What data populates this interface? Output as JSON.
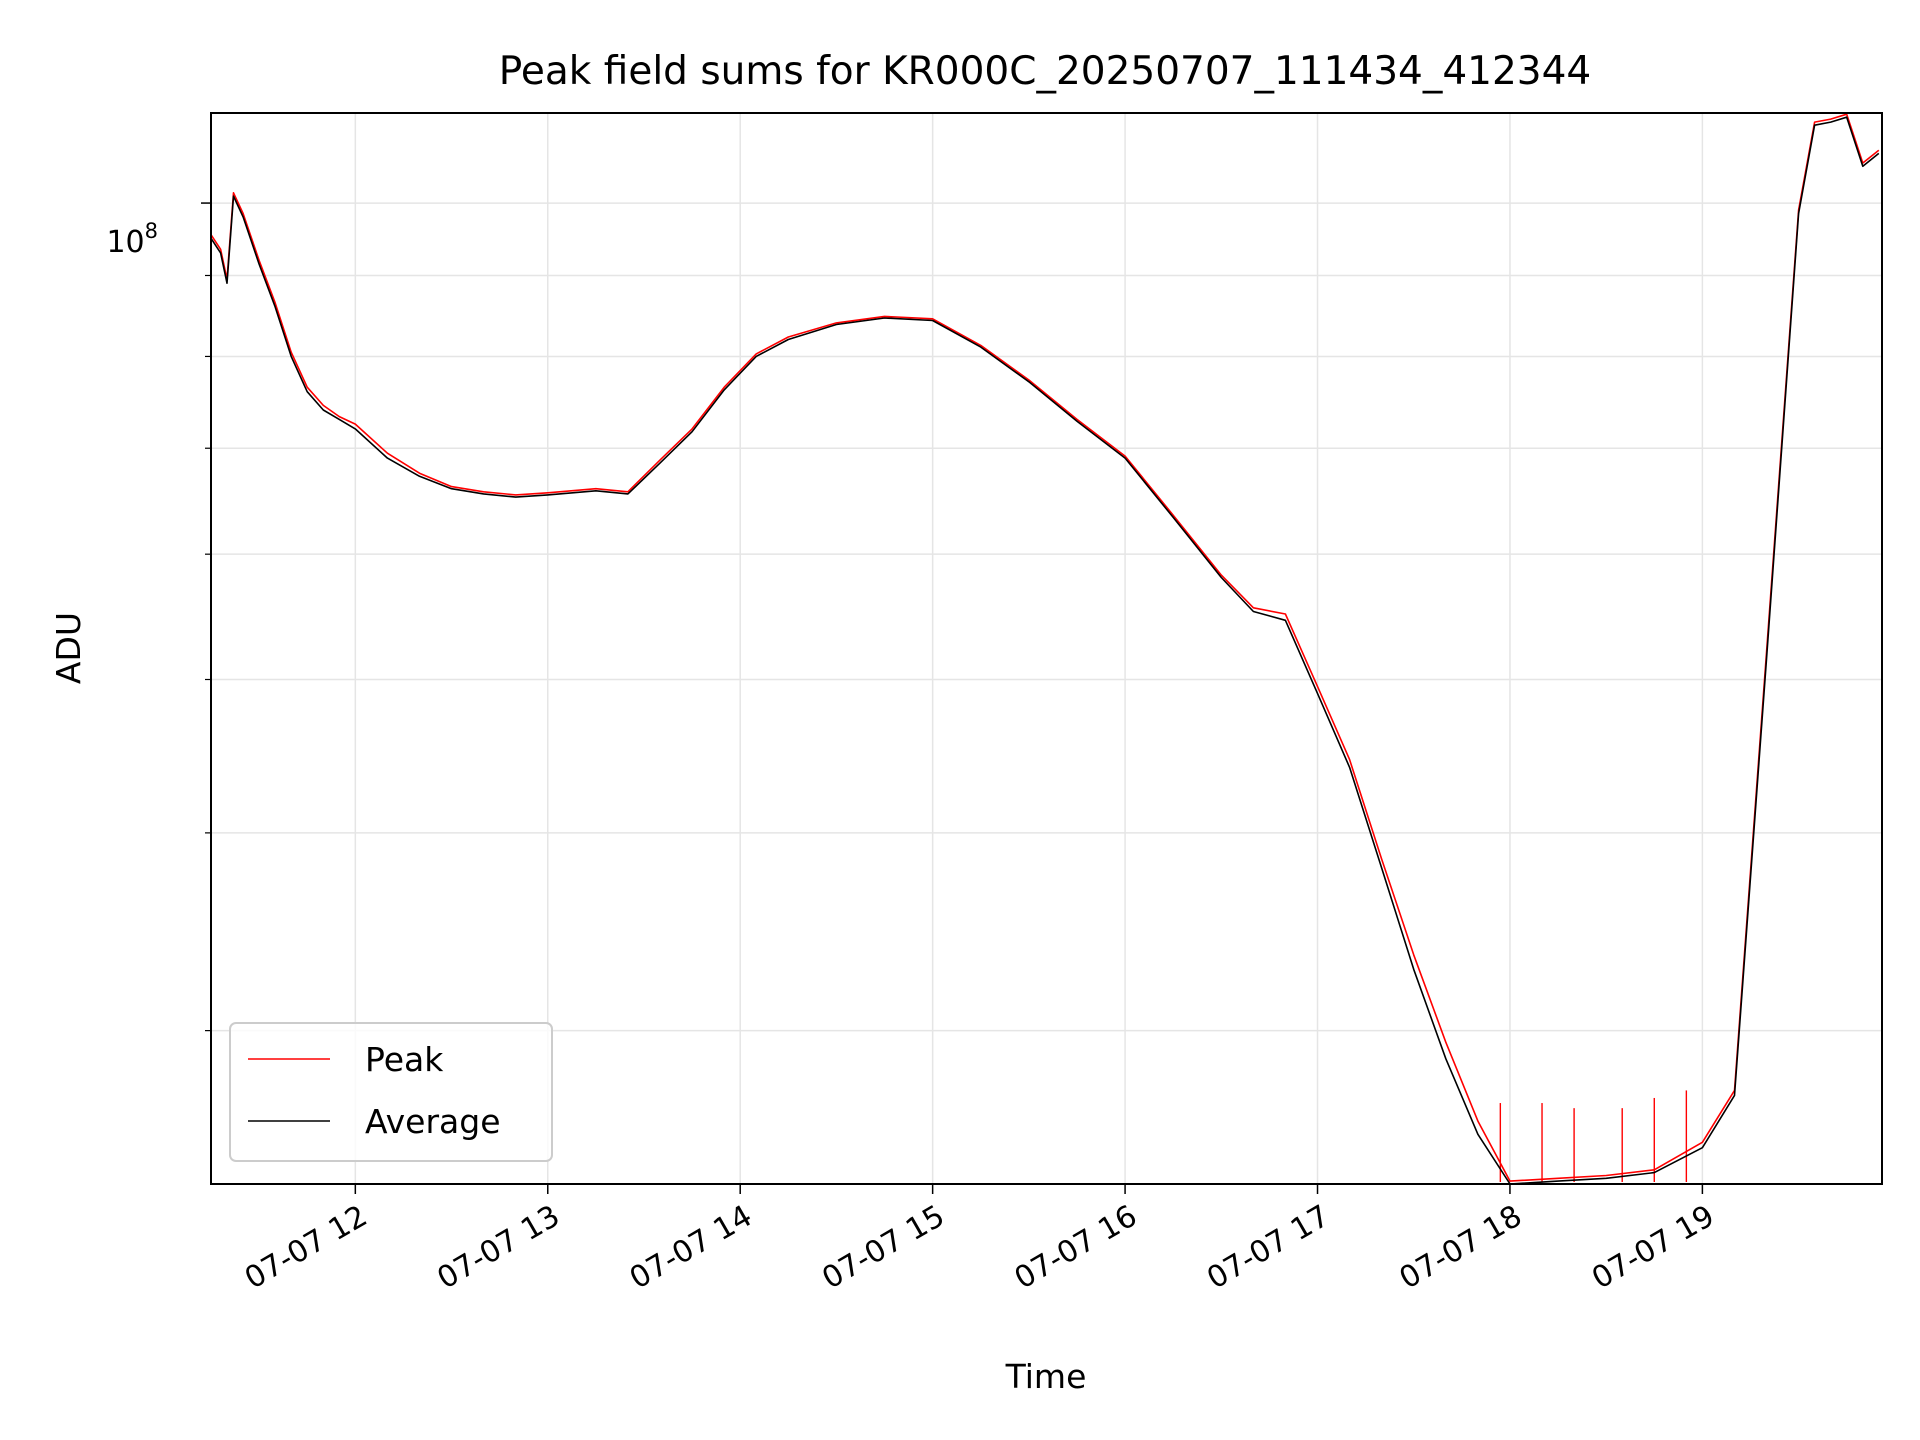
{
  "chart_data": {
    "type": "line",
    "title": "Peak field sums for KR000C_20250707_111434_412344",
    "xlabel": "Time",
    "ylabel": "ADU",
    "yscale": "log",
    "grid": true,
    "legend_position": "lower-left",
    "x_ticks": [
      "07-07 12",
      "07-07 13",
      "07-07 14",
      "07-07 15",
      "07-07 16",
      "07-07 17",
      "07-07 18",
      "07-07 19"
    ],
    "y_tick_label": "10^8",
    "xlim": [
      "2025-07-07 11:15",
      "2025-07-07 19:56"
    ],
    "ylim": [
      24000000,
      114000000
    ],
    "y_major_tick": 100000000,
    "y_minor_ticks": [
      30000000,
      40000000,
      50000000,
      60000000,
      70000000,
      80000000,
      90000000
    ],
    "series": [
      {
        "name": "Peak",
        "color": "#ff0000",
        "x": [
          "2025-07-07 11:15",
          "2025-07-07 11:18",
          "2025-07-07 11:20",
          "2025-07-07 11:22",
          "2025-07-07 11:25",
          "2025-07-07 11:30",
          "2025-07-07 11:35",
          "2025-07-07 11:40",
          "2025-07-07 11:45",
          "2025-07-07 11:50",
          "2025-07-07 11:55",
          "2025-07-07 12:00",
          "2025-07-07 12:10",
          "2025-07-07 12:20",
          "2025-07-07 12:30",
          "2025-07-07 12:40",
          "2025-07-07 12:50",
          "2025-07-07 13:00",
          "2025-07-07 13:15",
          "2025-07-07 13:25",
          "2025-07-07 13:35",
          "2025-07-07 13:45",
          "2025-07-07 13:55",
          "2025-07-07 14:05",
          "2025-07-07 14:15",
          "2025-07-07 14:30",
          "2025-07-07 14:45",
          "2025-07-07 15:00",
          "2025-07-07 15:15",
          "2025-07-07 15:30",
          "2025-07-07 15:45",
          "2025-07-07 16:00",
          "2025-07-07 16:15",
          "2025-07-07 16:30",
          "2025-07-07 16:40",
          "2025-07-07 16:50",
          "2025-07-07 17:00",
          "2025-07-07 17:10",
          "2025-07-07 17:20",
          "2025-07-07 17:30",
          "2025-07-07 17:40",
          "2025-07-07 17:50",
          "2025-07-07 18:00",
          "2025-07-07 18:15",
          "2025-07-07 18:30",
          "2025-07-07 18:45",
          "2025-07-07 19:00",
          "2025-07-07 19:10",
          "2025-07-07 19:20",
          "2025-07-07 19:30",
          "2025-07-07 19:35",
          "2025-07-07 19:40",
          "2025-07-07 19:45",
          "2025-07-07 19:50",
          "2025-07-07 19:55"
        ],
        "values": [
          95500000,
          93500000,
          89500000,
          101500000,
          98500000,
          92000000,
          86500000,
          80500000,
          76500000,
          74500000,
          73300000,
          72500000,
          69500000,
          67500000,
          66200000,
          65700000,
          65400000,
          65600000,
          66000000,
          65700000,
          68800000,
          72000000,
          76500000,
          80300000,
          82300000,
          84000000,
          84800000,
          84500000,
          81300000,
          77300000,
          73000000,
          69200000,
          63500000,
          58200000,
          55500000,
          55000000,
          49500000,
          44500000,
          38500000,
          33500000,
          29500000,
          26300000,
          24100000,
          24200000,
          24300000,
          24500000,
          25500000,
          27500000,
          52000000,
          99000000,
          112500000,
          113000000,
          113800000,
          106000000,
          108000000
        ],
        "spikes": [
          {
            "x": "2025-07-07 17:57",
            "value": 27000000
          },
          {
            "x": "2025-07-07 18:10",
            "value": 27000000
          },
          {
            "x": "2025-07-07 18:20",
            "value": 26800000
          },
          {
            "x": "2025-07-07 18:35",
            "value": 26800000
          },
          {
            "x": "2025-07-07 18:45",
            "value": 27200000
          },
          {
            "x": "2025-07-07 18:55",
            "value": 27500000
          }
        ]
      },
      {
        "name": "Average",
        "color": "#000000",
        "x": [
          "2025-07-07 11:15",
          "2025-07-07 11:18",
          "2025-07-07 11:20",
          "2025-07-07 11:22",
          "2025-07-07 11:25",
          "2025-07-07 11:30",
          "2025-07-07 11:35",
          "2025-07-07 11:40",
          "2025-07-07 11:45",
          "2025-07-07 11:50",
          "2025-07-07 11:55",
          "2025-07-07 12:00",
          "2025-07-07 12:10",
          "2025-07-07 12:20",
          "2025-07-07 12:30",
          "2025-07-07 12:40",
          "2025-07-07 12:50",
          "2025-07-07 13:00",
          "2025-07-07 13:15",
          "2025-07-07 13:25",
          "2025-07-07 13:35",
          "2025-07-07 13:45",
          "2025-07-07 13:55",
          "2025-07-07 14:05",
          "2025-07-07 14:15",
          "2025-07-07 14:30",
          "2025-07-07 14:45",
          "2025-07-07 15:00",
          "2025-07-07 15:15",
          "2025-07-07 15:30",
          "2025-07-07 15:45",
          "2025-07-07 16:00",
          "2025-07-07 16:15",
          "2025-07-07 16:30",
          "2025-07-07 16:40",
          "2025-07-07 16:50",
          "2025-07-07 17:00",
          "2025-07-07 17:10",
          "2025-07-07 17:20",
          "2025-07-07 17:30",
          "2025-07-07 17:40",
          "2025-07-07 17:50",
          "2025-07-07 18:00",
          "2025-07-07 18:15",
          "2025-07-07 18:30",
          "2025-07-07 18:45",
          "2025-07-07 19:00",
          "2025-07-07 19:10",
          "2025-07-07 19:20",
          "2025-07-07 19:30",
          "2025-07-07 19:35",
          "2025-07-07 19:40",
          "2025-07-07 19:45",
          "2025-07-07 19:50",
          "2025-07-07 19:55"
        ],
        "values": [
          95000000,
          93000000,
          89000000,
          101000000,
          98000000,
          91500000,
          86000000,
          80000000,
          76000000,
          74000000,
          73000000,
          72000000,
          69000000,
          67200000,
          66000000,
          65500000,
          65200000,
          65400000,
          65800000,
          65500000,
          68500000,
          71700000,
          76200000,
          80000000,
          82000000,
          83800000,
          84600000,
          84300000,
          81100000,
          77100000,
          72800000,
          69000000,
          63300000,
          58000000,
          55200000,
          54500000,
          49000000,
          44000000,
          38000000,
          32800000,
          28800000,
          25800000,
          24000000,
          24100000,
          24200000,
          24400000,
          25300000,
          27300000,
          51500000,
          98500000,
          112000000,
          112500000,
          113300000,
          105500000,
          107500000
        ]
      }
    ]
  }
}
